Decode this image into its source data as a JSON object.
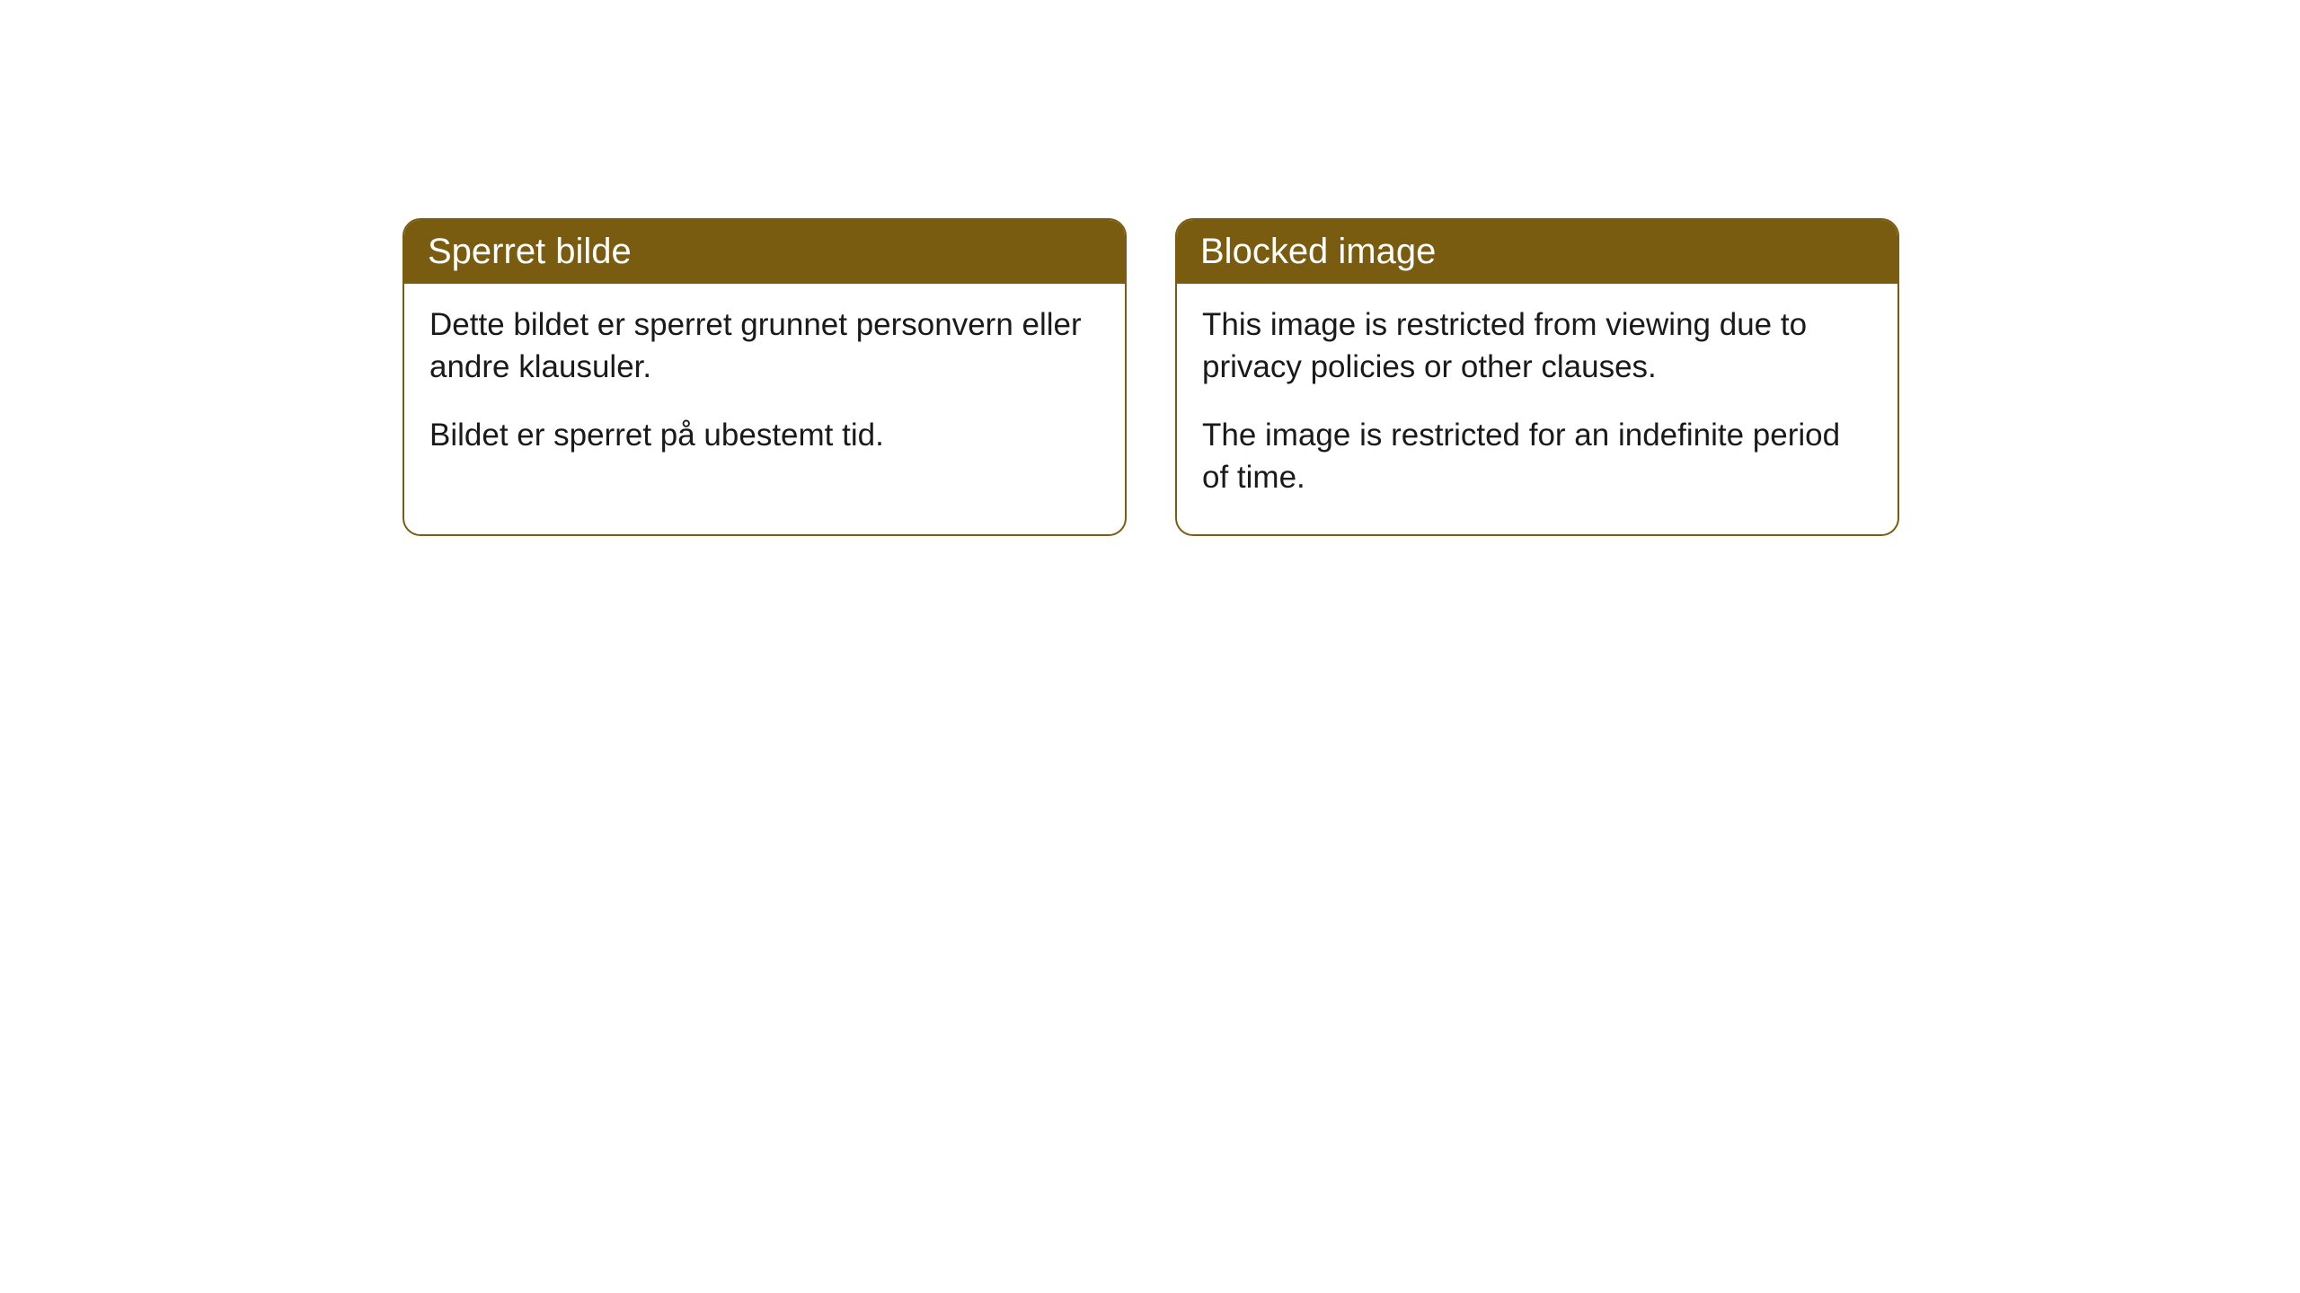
{
  "cards": [
    {
      "title": "Sperret bilde",
      "paragraph1": "Dette bildet er sperret grunnet personvern eller andre klausuler.",
      "paragraph2": "Bildet er sperret på ubestemt tid."
    },
    {
      "title": "Blocked image",
      "paragraph1": "This image is restricted from viewing due to privacy policies or other clauses.",
      "paragraph2": "The image is restricted for an indefinite period of time."
    }
  ],
  "colors": {
    "header_bg": "#7a5c11",
    "header_text": "#ffffff",
    "border": "#7a5c11",
    "body_bg": "#ffffff",
    "body_text": "#1a1a1a"
  }
}
